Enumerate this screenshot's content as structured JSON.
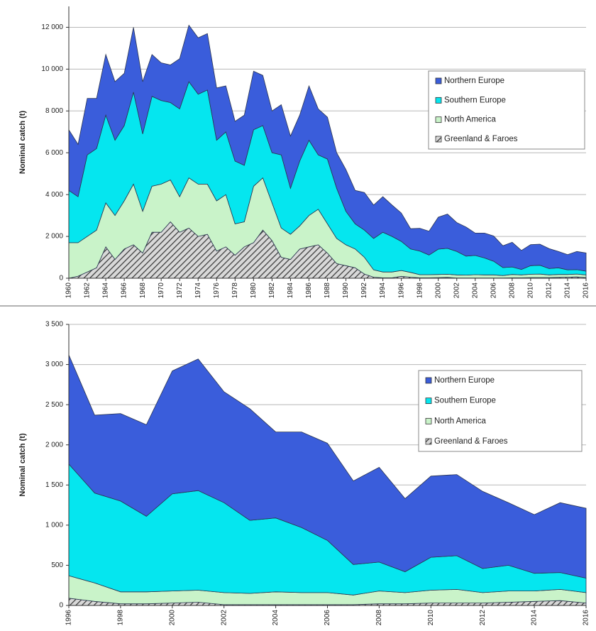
{
  "chart_data": [
    {
      "type": "stacked-area",
      "y_label": "Nominal catch (t)",
      "x": [
        1960,
        1961,
        1962,
        1963,
        1964,
        1965,
        1966,
        1967,
        1968,
        1969,
        1970,
        1971,
        1972,
        1973,
        1974,
        1975,
        1976,
        1977,
        1978,
        1979,
        1980,
        1981,
        1982,
        1983,
        1984,
        1985,
        1986,
        1987,
        1988,
        1989,
        1990,
        1991,
        1992,
        1993,
        1994,
        1995,
        1996,
        1997,
        1998,
        1999,
        2000,
        2001,
        2002,
        2003,
        2004,
        2005,
        2006,
        2007,
        2008,
        2009,
        2010,
        2011,
        2012,
        2013,
        2014,
        2015,
        2016
      ],
      "xlim": [
        1960,
        2016
      ],
      "xticks": [
        1960,
        1962,
        1964,
        1966,
        1968,
        1970,
        1972,
        1974,
        1976,
        1978,
        1980,
        1982,
        1984,
        1986,
        1988,
        1990,
        1992,
        1994,
        1996,
        1998,
        2000,
        2002,
        2004,
        2006,
        2008,
        2010,
        2012,
        2014,
        2016
      ],
      "ylim": [
        0,
        13000
      ],
      "yticks": [
        0,
        {
          "value": 2000,
          "label": "2 000"
        },
        {
          "value": 4000,
          "label": "4 000"
        },
        {
          "value": 6000,
          "label": "6 000"
        },
        {
          "value": 8000,
          "label": "8 000"
        },
        {
          "value": 10000,
          "label": "10 000"
        },
        {
          "value": 12000,
          "label": "12 000"
        }
      ],
      "grid": true,
      "legend": "right",
      "series": [
        {
          "name": "Northern Europe",
          "color": "#3a5ddb",
          "values": [
            2900,
            2500,
            2700,
            2400,
            2900,
            2800,
            2500,
            3100,
            2500,
            2000,
            1800,
            1800,
            2400,
            2700,
            2700,
            2700,
            2500,
            2200,
            1900,
            2400,
            2800,
            2400,
            2000,
            2400,
            2500,
            2200,
            2600,
            2200,
            2000,
            1700,
            2000,
            1600,
            1800,
            1600,
            1700,
            1500,
            1360,
            970,
            1090,
            1140,
            1530,
            1640,
            1380,
            1390,
            1070,
            1190,
            1210,
            1040,
            1180,
            910,
            1010,
            1010,
            960,
            780,
            730,
            870,
            870
          ]
        },
        {
          "name": "Southern Europe",
          "color": "#05e6ef",
          "values": [
            2500,
            2200,
            3900,
            3900,
            4200,
            3600,
            3600,
            4400,
            3700,
            4300,
            4000,
            3700,
            4200,
            4600,
            4300,
            4500,
            2900,
            3000,
            3000,
            2700,
            2700,
            2500,
            2400,
            3500,
            2200,
            3100,
            3600,
            2600,
            3100,
            2400,
            1600,
            1200,
            1300,
            1500,
            1900,
            1700,
            1390,
            1120,
            1130,
            940,
            1210,
            1240,
            1120,
            910,
            920,
            810,
            650,
            380,
            360,
            260,
            410,
            420,
            300,
            320,
            220,
            210,
            180
          ]
        },
        {
          "name": "North America",
          "color": "#c9f3c9",
          "values": [
            1700,
            1600,
            1700,
            1800,
            2100,
            2100,
            2300,
            2900,
            2000,
            2200,
            2300,
            2000,
            1700,
            2400,
            2500,
            2400,
            2400,
            2500,
            1500,
            1200,
            2700,
            2500,
            1800,
            1400,
            1200,
            1100,
            1500,
            1700,
            1400,
            1200,
            1000,
            900,
            800,
            350,
            280,
            280,
            280,
            230,
            150,
            150,
            150,
            150,
            150,
            140,
            160,
            150,
            150,
            120,
            160,
            140,
            160,
            170,
            130,
            140,
            130,
            140,
            130
          ]
        },
        {
          "name": "Greenland & Faroes",
          "color": "#555555",
          "pattern": "hatch",
          "values": [
            0,
            100,
            300,
            500,
            1500,
            900,
            1400,
            1600,
            1200,
            2200,
            2200,
            2700,
            2200,
            2400,
            2000,
            2100,
            1300,
            1500,
            1100,
            1500,
            1700,
            2300,
            1800,
            1000,
            900,
            1400,
            1500,
            1600,
            1200,
            700,
            600,
            500,
            200,
            50,
            20,
            20,
            90,
            50,
            20,
            20,
            30,
            40,
            10,
            10,
            10,
            10,
            10,
            10,
            20,
            20,
            30,
            30,
            30,
            40,
            50,
            60,
            30
          ]
        }
      ]
    },
    {
      "type": "stacked-area",
      "y_label": "Nominal catch (t)",
      "x": [
        1996,
        1997,
        1998,
        1999,
        2000,
        2001,
        2002,
        2003,
        2004,
        2005,
        2006,
        2007,
        2008,
        2009,
        2010,
        2011,
        2012,
        2013,
        2014,
        2015,
        2016
      ],
      "xlim": [
        1996,
        2016
      ],
      "xticks": [
        1996,
        1998,
        2000,
        2002,
        2004,
        2006,
        2008,
        2010,
        2012,
        2014,
        2016
      ],
      "ylim": [
        0,
        3500
      ],
      "yticks": [
        0,
        500,
        {
          "value": 1000,
          "label": "1 000"
        },
        {
          "value": 1500,
          "label": "1 500"
        },
        {
          "value": 2000,
          "label": "2 000"
        },
        {
          "value": 2500,
          "label": "2 500"
        },
        {
          "value": 3000,
          "label": "3 000"
        },
        {
          "value": 3500,
          "label": "3 500"
        }
      ],
      "grid": true,
      "legend": "right",
      "series": [
        {
          "name": "Northern Europe",
          "color": "#3a5ddb",
          "values": [
            1360,
            970,
            1090,
            1140,
            1530,
            1640,
            1380,
            1390,
            1070,
            1190,
            1210,
            1040,
            1180,
            910,
            1010,
            1010,
            960,
            780,
            730,
            870,
            870
          ]
        },
        {
          "name": "Southern Europe",
          "color": "#05e6ef",
          "values": [
            1390,
            1120,
            1130,
            940,
            1210,
            1240,
            1120,
            910,
            920,
            810,
            650,
            380,
            360,
            260,
            410,
            420,
            300,
            320,
            220,
            210,
            180
          ]
        },
        {
          "name": "North America",
          "color": "#c9f3c9",
          "values": [
            280,
            230,
            150,
            150,
            150,
            150,
            150,
            140,
            160,
            150,
            150,
            120,
            160,
            140,
            160,
            170,
            130,
            140,
            130,
            140,
            130
          ]
        },
        {
          "name": "Greenland & Faroes",
          "color": "#555555",
          "pattern": "hatch",
          "values": [
            90,
            50,
            20,
            20,
            30,
            40,
            10,
            10,
            10,
            10,
            10,
            10,
            20,
            20,
            30,
            30,
            30,
            40,
            50,
            60,
            30
          ]
        }
      ]
    }
  ]
}
